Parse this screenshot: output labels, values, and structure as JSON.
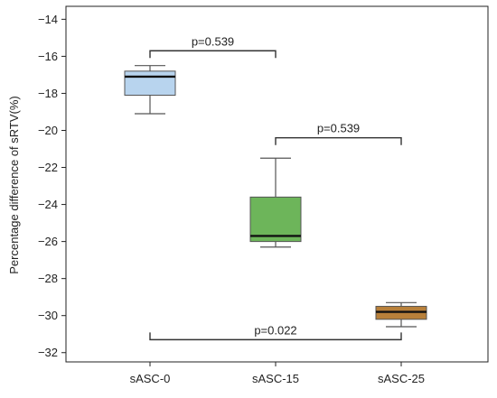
{
  "chart_data": {
    "type": "box",
    "ylabel": "Percentage difference of sRTV(%)",
    "xlabel": "",
    "ylim": [
      -32.5,
      -13.3
    ],
    "yticks": [
      -14,
      -16,
      -18,
      -20,
      -22,
      -24,
      -26,
      -28,
      -30,
      -32
    ],
    "categories": [
      "sASC-0",
      "sASC-15",
      "sASC-25"
    ],
    "boxes": [
      {
        "category": "sASC-0",
        "whisker_low": -19.1,
        "q1": -18.1,
        "median": -17.1,
        "q3": -16.8,
        "whisker_high": -16.5,
        "color": "#b8d4ee"
      },
      {
        "category": "sASC-15",
        "whisker_low": -26.3,
        "q1": -26.0,
        "median": -25.7,
        "q3": -23.6,
        "whisker_high": -21.5,
        "color": "#6db55a"
      },
      {
        "category": "sASC-25",
        "whisker_low": -30.6,
        "q1": -30.2,
        "median": -29.8,
        "q3": -29.5,
        "whisker_high": -29.3,
        "color": "#b8803a"
      }
    ],
    "annotations": [
      {
        "from": "sASC-0",
        "to": "sASC-15",
        "label": "p=0.539",
        "y": -15.7,
        "direction": "down",
        "label_side": "above"
      },
      {
        "from": "sASC-15",
        "to": "sASC-25",
        "label": "p=0.539",
        "y": -20.4,
        "direction": "down",
        "label_side": "above"
      },
      {
        "from": "sASC-0",
        "to": "sASC-25",
        "label": "p=0.022",
        "y": -31.3,
        "direction": "up",
        "label_side": "above"
      }
    ],
    "grid": false,
    "legend": "none"
  }
}
